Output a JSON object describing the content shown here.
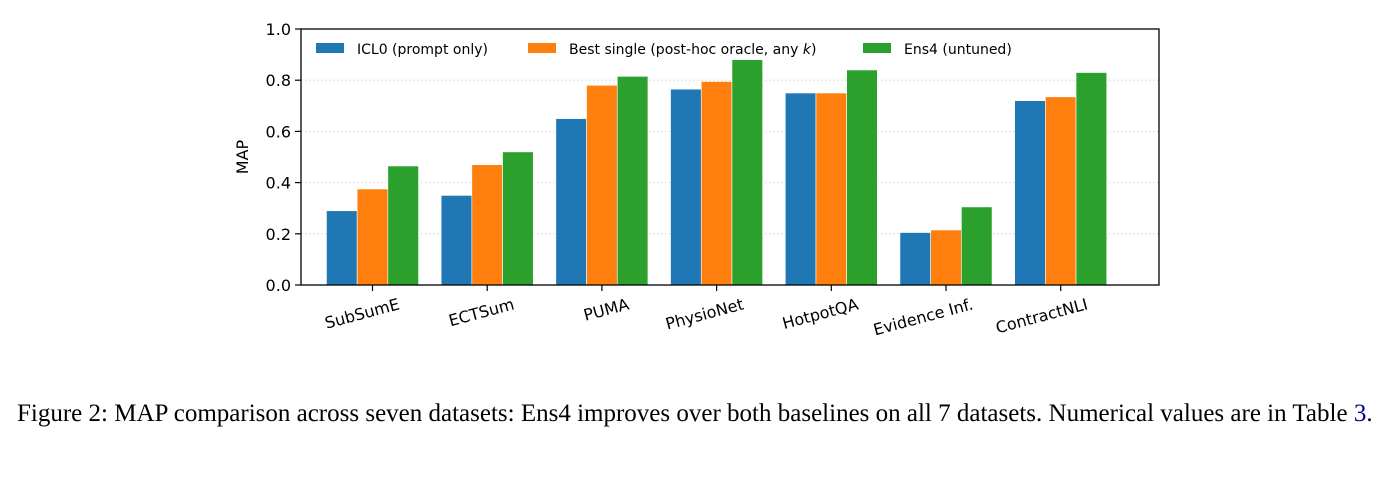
{
  "chart_data": {
    "type": "bar",
    "categories": [
      "SubSumE",
      "ECTSum",
      "PUMA",
      "PhysioNet",
      "HotpotQA",
      "Evidence Inf.",
      "ContractNLI"
    ],
    "series": [
      {
        "name": "ICL0 (prompt only)",
        "color": "#1f77b4",
        "values": [
          0.29,
          0.35,
          0.65,
          0.765,
          0.75,
          0.205,
          0.72
        ]
      },
      {
        "name": "Best single (post-hoc oracle, any k)",
        "name_prefix": "Best single (post-hoc oracle, any ",
        "name_italic": "k",
        "name_suffix": ")",
        "color": "#ff7f0e",
        "values": [
          0.375,
          0.47,
          0.78,
          0.795,
          0.75,
          0.215,
          0.735
        ]
      },
      {
        "name": "Ens4 (untuned)",
        "color": "#2ca02c",
        "values": [
          0.465,
          0.52,
          0.815,
          0.88,
          0.84,
          0.305,
          0.83
        ]
      }
    ],
    "xlabel": "",
    "ylabel": "MAP",
    "ylim": [
      0.0,
      1.0
    ],
    "yticks": [
      "0.0",
      "0.2",
      "0.4",
      "0.6",
      "0.8",
      "1.0"
    ],
    "grid": "horizontal dotted",
    "legend_position": "top-left"
  },
  "caption": {
    "text_before": "Figure 2: MAP comparison across seven datasets: Ens4 improves over both baselines on all 7 datasets. Numerical values are in Table ",
    "ref": "3",
    "text_after": "."
  }
}
